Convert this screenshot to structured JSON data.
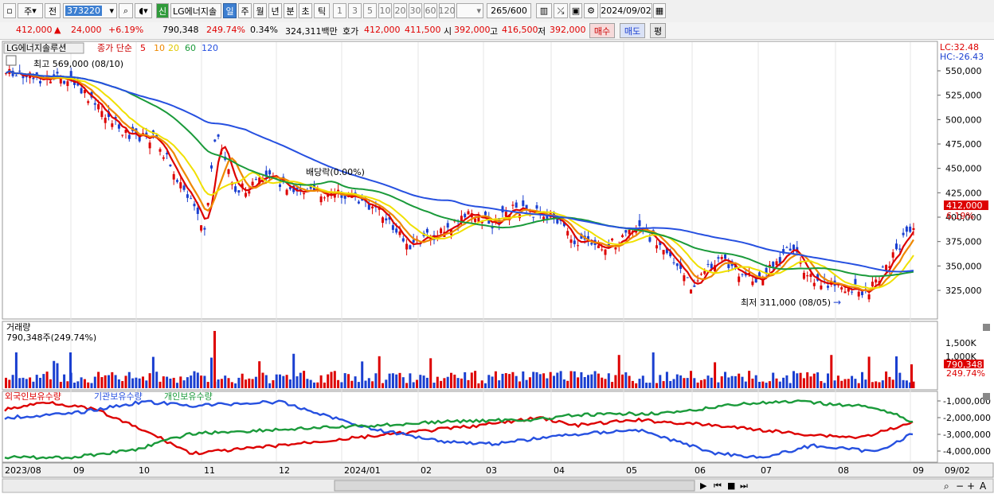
{
  "toolbar": {
    "mode": "주",
    "prev": "전",
    "code": "373220",
    "badge": "신",
    "name": "LG에너지솔",
    "periods": [
      "일",
      "주",
      "월",
      "년",
      "분",
      "초",
      "틱"
    ],
    "active_period": "일",
    "intervals": [
      "1",
      "3",
      "5",
      "10",
      "20",
      "30",
      "60",
      "120"
    ],
    "count": "265",
    "count_total": "/600",
    "date": "2024/09/02"
  },
  "info": {
    "price": "412,000",
    "arrow": "▲",
    "change": "24,000",
    "change_pct": "+6.19%",
    "volume": "790,348",
    "volume_ratio": "249.74%",
    "turnover": "0.34%",
    "amount": "324,311백만",
    "ask_label": "호가",
    "ask": "412,000",
    "bid": "411,500",
    "open_label": "시",
    "open": "392,000",
    "high_label": "고",
    "high": "416,500",
    "low_label": "저",
    "low": "392,000",
    "buy": "매수",
    "sell": "매도",
    "eval": "평"
  },
  "price_panel": {
    "title": "LG에너지솔루션",
    "ma_label": "종가 단순",
    "ma_periods": [
      "5",
      "10",
      "20",
      "60",
      "120"
    ],
    "ma_colors": [
      "#dd0000",
      "#ee8800",
      "#f0e000",
      "#1a9a3a",
      "#2650e0"
    ],
    "lc": "LC:32.48",
    "hc": "HC:-26.43",
    "max_note": "최고 569,000 (08/10)",
    "min_note": "최저 311,000 (08/05)",
    "dividend_note": "배당락(0.00%)",
    "last_price_tag": "412,000",
    "last_pct_tag": "6.19%",
    "y_ticks": [
      "550,000",
      "525,000",
      "500,000",
      "475,000",
      "450,000",
      "425,000",
      "400,000",
      "375,000",
      "350,000",
      "325,000"
    ]
  },
  "volume_panel": {
    "title": "거래량",
    "value": "790,348주(249.74%)",
    "y_ticks": [
      "1,500K",
      "1,000K"
    ],
    "last_tag": "790,348",
    "last_pct": "249.74%"
  },
  "flow_panel": {
    "labels": [
      "외국인보유수량",
      "기관보유수량",
      "개인보유수량"
    ],
    "colors": [
      "#dd0000",
      "#2650e0",
      "#1a9a3a"
    ],
    "y_ticks": [
      "-1,000,000",
      "-2,000,000",
      "-3,000,000",
      "-4,000,000"
    ]
  },
  "x_axis": [
    "2023/08",
    "09",
    "10",
    "11",
    "12",
    "2024/01",
    "02",
    "03",
    "04",
    "05",
    "06",
    "07",
    "08",
    "09"
  ],
  "x_axis_right": "09/02"
}
